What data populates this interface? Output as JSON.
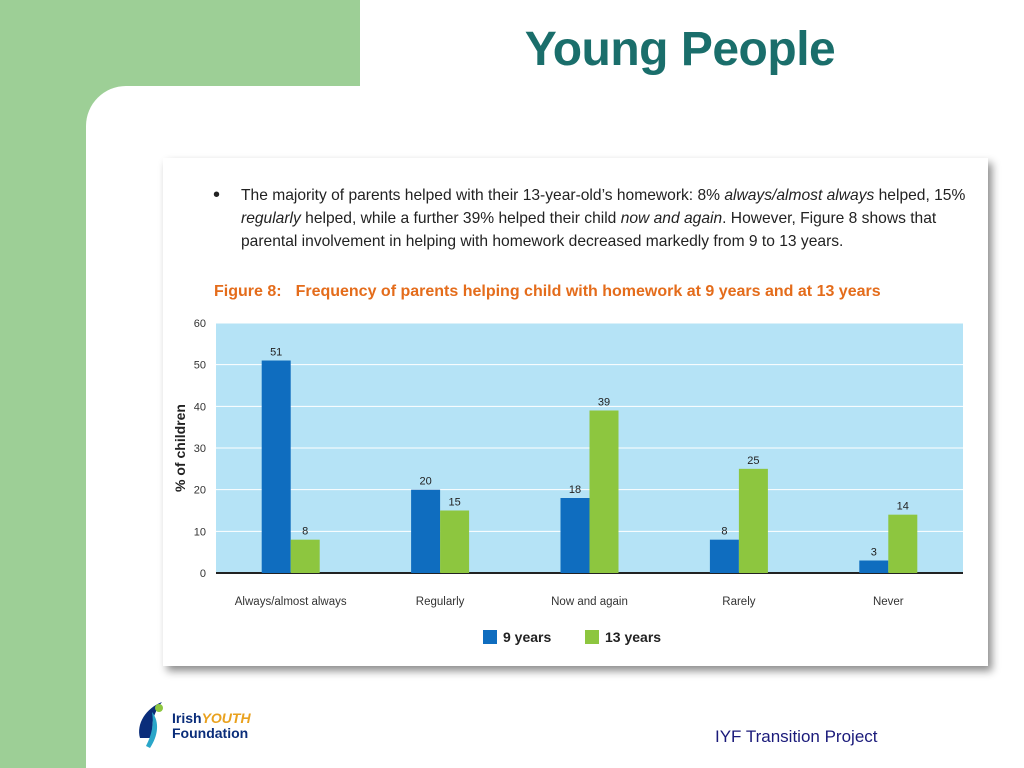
{
  "slide": {
    "title": "Young People",
    "footer": "IYF Transition Project",
    "logo_text_1": "Irish",
    "logo_text_youth": "YOUTH",
    "logo_text_2": "Foundation"
  },
  "bullet": {
    "line1_a": "The majority of parents helped with their 13-year-old’s homework: 8% ",
    "line1_i": "always/almost always",
    "line1_b": " helped, 15% ",
    "line1_i2": "regularly",
    "line1_c": " helped, while a further 39% helped their child ",
    "line1_i3": "now and again",
    "line1_d": ". However, Figure 8 shows that parental involvement in helping with homework decreased markedly from 9 to 13 years."
  },
  "figure": {
    "number": "Figure 8:",
    "title": "Frequency of parents helping child with homework at 9 years and at 13 years"
  },
  "colors": {
    "series_9": "#0f6dbf",
    "series_13": "#8dc63f",
    "plot_bg": "#b5e3f6",
    "accent_orange": "#e46c1b",
    "title_teal": "#1a6e6b"
  },
  "chart_data": {
    "type": "bar",
    "categories": [
      "Always/almost always",
      "Regularly",
      "Now and again",
      "Rarely",
      "Never"
    ],
    "series": [
      {
        "name": "9 years",
        "values": [
          51,
          20,
          18,
          8,
          3
        ]
      },
      {
        "name": "13 years",
        "values": [
          8,
          15,
          39,
          25,
          14
        ]
      }
    ],
    "ylabel": "% of children",
    "ylim": [
      0,
      60
    ],
    "yticks": [
      0,
      10,
      20,
      30,
      40,
      50,
      60
    ],
    "grid": true,
    "legend_position": "bottom"
  }
}
